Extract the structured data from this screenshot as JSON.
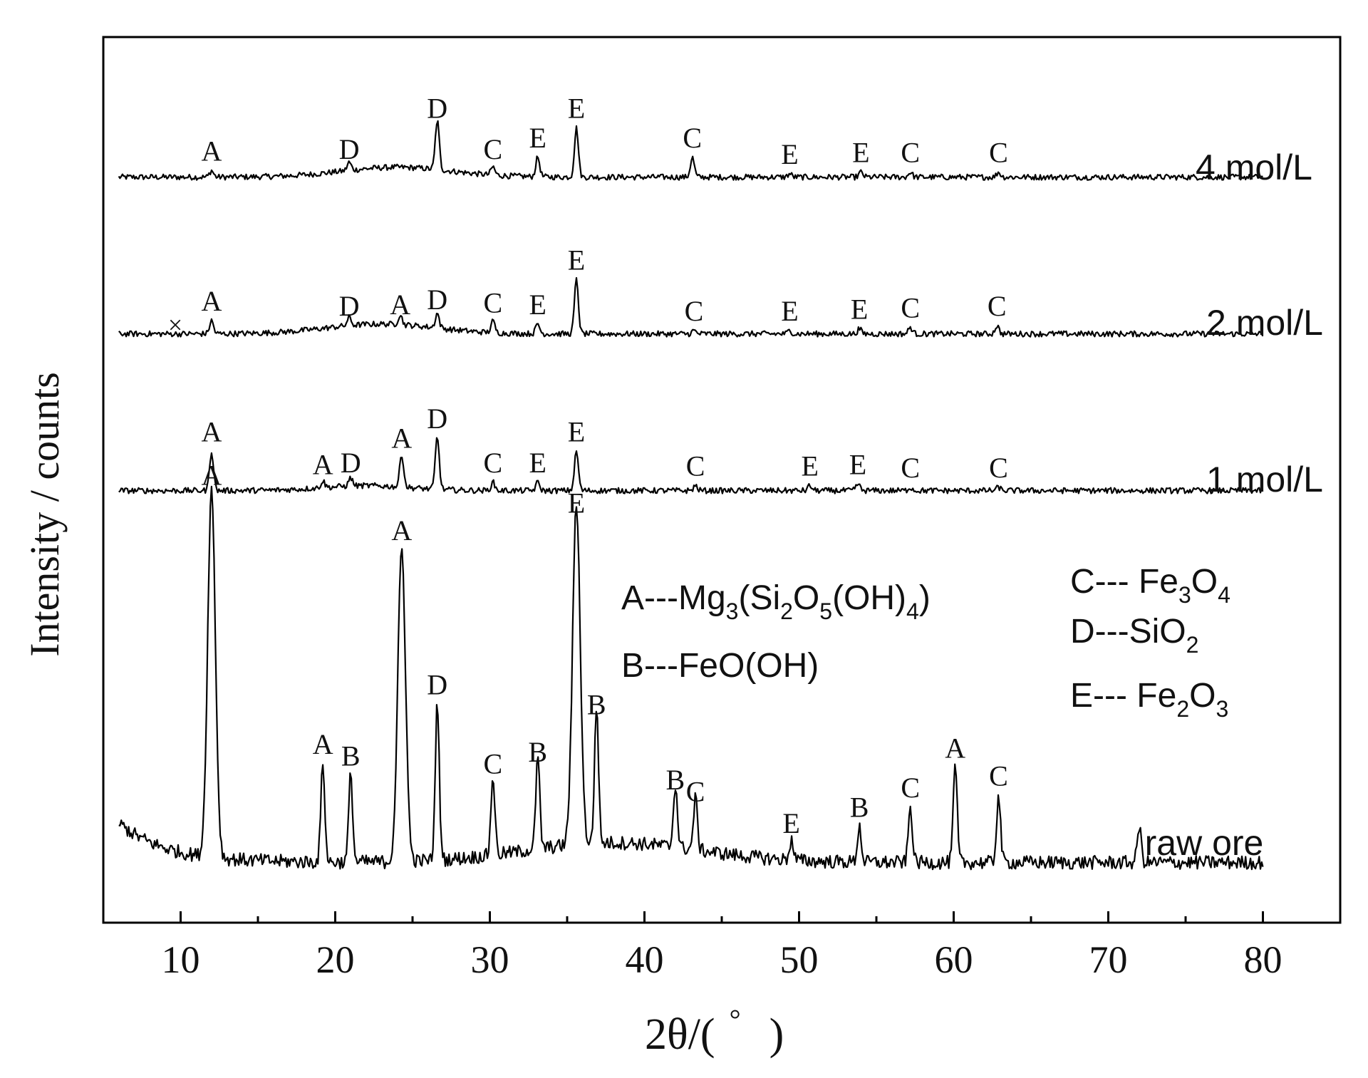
{
  "chart_data": {
    "type": "line",
    "title": "",
    "xlabel": "2θ/(°)",
    "ylabel": "Intensity / counts",
    "xlim": [
      5,
      85
    ],
    "xticks": [
      10,
      20,
      30,
      40,
      50,
      60,
      70,
      80
    ],
    "y_ticks_shown": false,
    "grid": false,
    "series": [
      {
        "name": "4 mol/L",
        "baseline": 0.18,
        "broad_hump": {
          "center": 24,
          "width": 5,
          "height": 0.06
        },
        "peaks": [
          {
            "x": 12.0,
            "h": 0.04,
            "label": "A"
          },
          {
            "x": 20.9,
            "h": 0.05,
            "label": "D"
          },
          {
            "x": 26.6,
            "h": 0.3,
            "label": "D"
          },
          {
            "x": 30.2,
            "h": 0.05,
            "label": "C"
          },
          {
            "x": 33.1,
            "h": 0.12,
            "label": "E"
          },
          {
            "x": 35.6,
            "h": 0.3,
            "label": "E"
          },
          {
            "x": 43.1,
            "h": 0.12,
            "label": "C"
          },
          {
            "x": 49.4,
            "h": 0.02,
            "label": "E"
          },
          {
            "x": 54.0,
            "h": 0.03,
            "label": "E"
          },
          {
            "x": 57.2,
            "h": 0.03,
            "label": "C"
          },
          {
            "x": 62.9,
            "h": 0.03,
            "label": "C"
          }
        ]
      },
      {
        "name": "2 mol/L",
        "baseline": 0.18,
        "broad_hump": {
          "center": 23,
          "width": 5,
          "height": 0.06
        },
        "extra_marker": {
          "x": 9.5,
          "symbol": "×"
        },
        "peaks": [
          {
            "x": 12.0,
            "h": 0.08,
            "label": "A"
          },
          {
            "x": 20.9,
            "h": 0.05,
            "label": "D"
          },
          {
            "x": 24.2,
            "h": 0.06,
            "label": "A"
          },
          {
            "x": 26.6,
            "h": 0.09,
            "label": "D"
          },
          {
            "x": 30.2,
            "h": 0.07,
            "label": "C"
          },
          {
            "x": 33.1,
            "h": 0.06,
            "label": "E"
          },
          {
            "x": 35.6,
            "h": 0.33,
            "label": "E"
          },
          {
            "x": 43.2,
            "h": 0.02,
            "label": "C"
          },
          {
            "x": 49.4,
            "h": 0.02,
            "label": "E"
          },
          {
            "x": 53.9,
            "h": 0.03,
            "label": "E"
          },
          {
            "x": 57.2,
            "h": 0.04,
            "label": "C"
          },
          {
            "x": 62.8,
            "h": 0.05,
            "label": "C"
          }
        ]
      },
      {
        "name": "1 mol/L",
        "baseline": 0.18,
        "broad_hump": {
          "center": 22,
          "width": 4,
          "height": 0.03
        },
        "peaks": [
          {
            "x": 12.0,
            "h": 0.24,
            "label": "A"
          },
          {
            "x": 19.2,
            "h": 0.04,
            "label": "A"
          },
          {
            "x": 21.0,
            "h": 0.05,
            "label": "D"
          },
          {
            "x": 24.3,
            "h": 0.2,
            "label": "A"
          },
          {
            "x": 26.6,
            "h": 0.32,
            "label": "D"
          },
          {
            "x": 30.2,
            "h": 0.05,
            "label": "C"
          },
          {
            "x": 33.1,
            "h": 0.05,
            "label": "E"
          },
          {
            "x": 35.6,
            "h": 0.24,
            "label": "E"
          },
          {
            "x": 43.3,
            "h": 0.03,
            "label": "C"
          },
          {
            "x": 50.7,
            "h": 0.03,
            "label": "E"
          },
          {
            "x": 53.8,
            "h": 0.04,
            "label": "E"
          },
          {
            "x": 57.2,
            "h": 0.02,
            "label": "C"
          },
          {
            "x": 62.9,
            "h": 0.02,
            "label": "C"
          }
        ]
      },
      {
        "name": "raw ore",
        "baseline": 0.08,
        "peaks": [
          {
            "x": 12.0,
            "h": 0.93,
            "label": "A"
          },
          {
            "x": 19.2,
            "h": 0.25,
            "label": "A"
          },
          {
            "x": 21.0,
            "h": 0.22,
            "label": "B"
          },
          {
            "x": 24.3,
            "h": 0.79,
            "label": "A"
          },
          {
            "x": 26.6,
            "h": 0.4,
            "label": "D"
          },
          {
            "x": 30.2,
            "h": 0.2,
            "label": "C"
          },
          {
            "x": 33.1,
            "h": 0.23,
            "label": "B"
          },
          {
            "x": 35.6,
            "h": 0.86,
            "label": "E"
          },
          {
            "x": 36.9,
            "h": 0.35,
            "label": "B"
          },
          {
            "x": 42.0,
            "h": 0.16,
            "label": "B"
          },
          {
            "x": 43.3,
            "h": 0.13,
            "label": "C"
          },
          {
            "x": 49.5,
            "h": 0.05,
            "label": "E"
          },
          {
            "x": 53.9,
            "h": 0.09,
            "label": "B"
          },
          {
            "x": 57.2,
            "h": 0.14,
            "label": "C"
          },
          {
            "x": 60.1,
            "h": 0.24,
            "label": "A"
          },
          {
            "x": 62.9,
            "h": 0.17,
            "label": "C"
          },
          {
            "x": 72.0,
            "h": 0.09,
            "label": ""
          }
        ]
      }
    ],
    "legend": {
      "placement": "inside-middle",
      "entries": [
        {
          "letter": "A",
          "text": "---Mg3(Si2O5(OH)4)"
        },
        {
          "letter": "B",
          "text": "---FeO(OH)"
        },
        {
          "letter": "C",
          "text": "--- Fe3O4"
        },
        {
          "letter": "D",
          "text": "---SiO2"
        },
        {
          "letter": "E",
          "text": "--- Fe2O3"
        }
      ]
    }
  },
  "labels": {
    "xaxis": "2θ/(",
    "degree": "°",
    "close_paren": ")",
    "yaxis": "Intensity / counts",
    "x_marker": "×"
  },
  "legend_text": {
    "A_prefix": "A---Mg",
    "A_sub3": "3",
    "A_mid1": "(Si",
    "A_sub2": "2",
    "A_mid2": "O",
    "A_sub5": "5",
    "A_mid3": "(OH)",
    "A_sub4": "4",
    "A_end": ")",
    "B_line": "B---FeO(OH)",
    "C_prefix": "C--- Fe",
    "C_sub3": "3",
    "C_mid": "O",
    "C_sub4": "4",
    "D_prefix": "D---SiO",
    "D_sub2": "2",
    "E_prefix": "E--- Fe",
    "E_sub2": "2",
    "E_mid": "O",
    "E_sub3": "3"
  }
}
